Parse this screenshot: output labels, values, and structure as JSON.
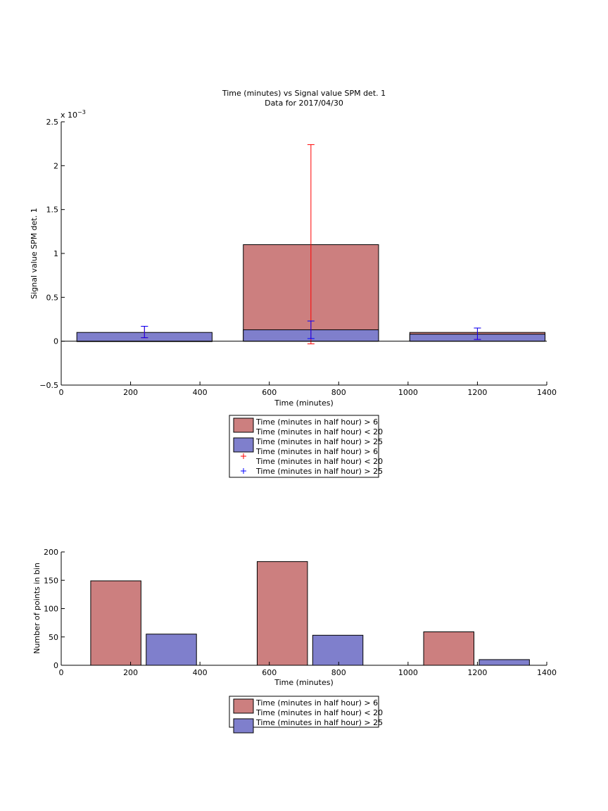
{
  "chart_data": [
    {
      "type": "bar",
      "title": "Time (minutes) vs Signal value SPM det. 1",
      "subtitle": "Data for 2017/04/30",
      "xlabel": "Time (minutes)",
      "ylabel": "Signal value SPM det. 1",
      "y_multiplier": "x 10",
      "y_exponent": "−3",
      "xlim": [
        0,
        1400
      ],
      "ylim": [
        -0.5,
        2.5
      ],
      "xticks": [
        0,
        200,
        400,
        600,
        800,
        1000,
        1200,
        1400
      ],
      "yticks": [
        -0.5,
        0,
        0.5,
        1,
        1.5,
        2,
        2.5
      ],
      "ytick_labels": [
        "−0.5",
        "0",
        "0.5",
        "1",
        "1.5",
        "2",
        "2.5"
      ],
      "grid": false,
      "legend_position": "below",
      "bins": [
        {
          "x_start": 45,
          "x_end": 435,
          "center": 240
        },
        {
          "x_start": 525,
          "x_end": 915,
          "center": 720
        },
        {
          "x_start": 1005,
          "x_end": 1395,
          "center": 1200
        }
      ],
      "series": [
        {
          "name": "Time (minutes in half hour) > 6 Time (minutes in half hour) < 20",
          "color": "#cc7f7f",
          "values": [
            0.0,
            1.1,
            0.1
          ]
        },
        {
          "name": "Time (minutes in half hour) > 25",
          "color": "#7f7fcc",
          "values": [
            0.1,
            0.13,
            0.08
          ]
        }
      ],
      "error_bars": [
        {
          "name": "Time (minutes in half hour) > 6 Time (minutes in half hour) < 20",
          "color": "#ff0000",
          "x": [
            240,
            720,
            1200
          ],
          "low": [
            0.04,
            -0.03,
            0.02
          ],
          "high": [
            0.17,
            2.24,
            0.15
          ]
        },
        {
          "name": "Time (minutes in half hour) > 25",
          "color": "#0000ff",
          "x": [
            240,
            720,
            1200
          ],
          "low": [
            0.04,
            0.03,
            0.02
          ],
          "high": [
            0.17,
            0.23,
            0.15
          ]
        }
      ],
      "legend": [
        {
          "kind": "patch",
          "color": "#cc7f7f",
          "lines": [
            "Time (minutes in half hour) > 6",
            "Time (minutes in half hour) < 20"
          ]
        },
        {
          "kind": "patch",
          "color": "#7f7fcc",
          "lines": [
            "Time (minutes in half hour) > 25"
          ]
        },
        {
          "kind": "marker",
          "color": "#ff0000",
          "lines": [
            "Time (minutes in half hour) > 6",
            "Time (minutes in half hour) < 20"
          ]
        },
        {
          "kind": "marker",
          "color": "#0000ff",
          "lines": [
            "Time (minutes in half hour) > 25"
          ]
        }
      ]
    },
    {
      "type": "bar",
      "xlabel": "Time (minutes)",
      "ylabel": "Number of points in bin",
      "xlim": [
        0,
        1400
      ],
      "ylim": [
        0,
        200
      ],
      "xticks": [
        0,
        200,
        400,
        600,
        800,
        1000,
        1200,
        1400
      ],
      "yticks": [
        0,
        50,
        100,
        150,
        200
      ],
      "grid": false,
      "legend_position": "below",
      "bars": [
        {
          "series": 0,
          "x_start": 85,
          "x_end": 230,
          "value": 149
        },
        {
          "series": 1,
          "x_start": 245,
          "x_end": 390,
          "value": 55
        },
        {
          "series": 0,
          "x_start": 565,
          "x_end": 710,
          "value": 183
        },
        {
          "series": 1,
          "x_start": 725,
          "x_end": 870,
          "value": 53
        },
        {
          "series": 0,
          "x_start": 1045,
          "x_end": 1190,
          "value": 59
        },
        {
          "series": 1,
          "x_start": 1205,
          "x_end": 1350,
          "value": 10
        }
      ],
      "series": [
        {
          "name": "Time (minutes in half hour) > 6 Time (minutes in half hour) < 20",
          "color": "#cc7f7f"
        },
        {
          "name": "Time (minutes in half hour) > 25",
          "color": "#7f7fcc"
        }
      ],
      "legend": [
        {
          "kind": "patch",
          "color": "#cc7f7f",
          "lines": [
            "Time (minutes in half hour) > 6",
            "Time (minutes in half hour) < 20"
          ]
        },
        {
          "kind": "patch",
          "color": "#7f7fcc",
          "lines": [
            "Time (minutes in half hour) > 25"
          ]
        }
      ]
    }
  ]
}
